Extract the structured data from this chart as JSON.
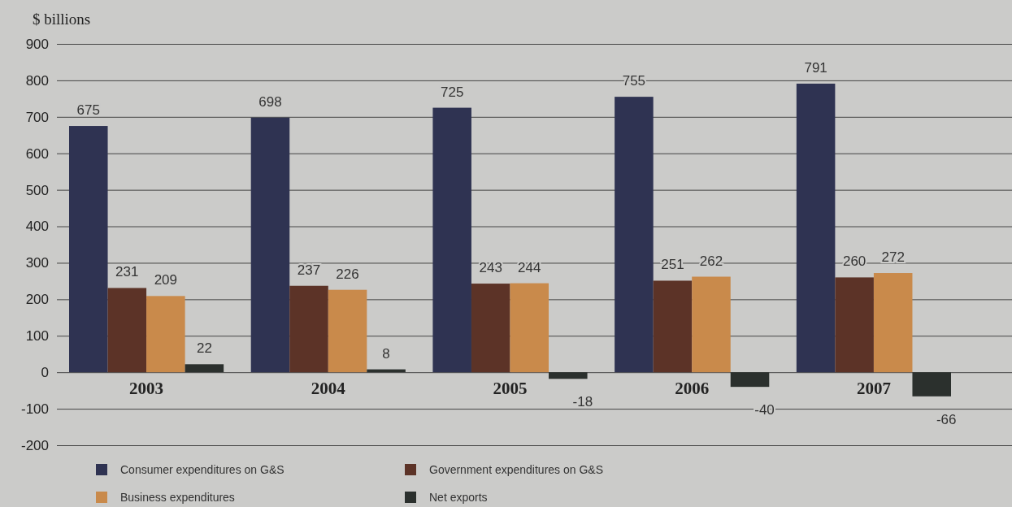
{
  "chart_data": {
    "type": "bar",
    "ylabel": "$ billions",
    "categories": [
      "2003",
      "2004",
      "2005",
      "2006",
      "2007"
    ],
    "series": [
      {
        "name": "Consumer expenditures on G&S",
        "color": "#2f3352",
        "values": [
          675,
          698,
          725,
          755,
          791
        ]
      },
      {
        "name": "Government expenditures on G&S",
        "color": "#5c3327",
        "values": [
          231,
          237,
          243,
          251,
          260
        ]
      },
      {
        "name": "Business expenditures",
        "color": "#c98a4b",
        "values": [
          209,
          226,
          244,
          262,
          272
        ]
      },
      {
        "name": "Net exports",
        "color": "#2b302d",
        "values": [
          22,
          8,
          -18,
          -40,
          -66
        ]
      }
    ],
    "ylim": [
      -200,
      900
    ],
    "yticks": [
      -200,
      -100,
      0,
      100,
      200,
      300,
      400,
      500,
      600,
      700,
      800,
      900
    ],
    "grid": "y",
    "data_labels": true,
    "legend": "bottom"
  }
}
